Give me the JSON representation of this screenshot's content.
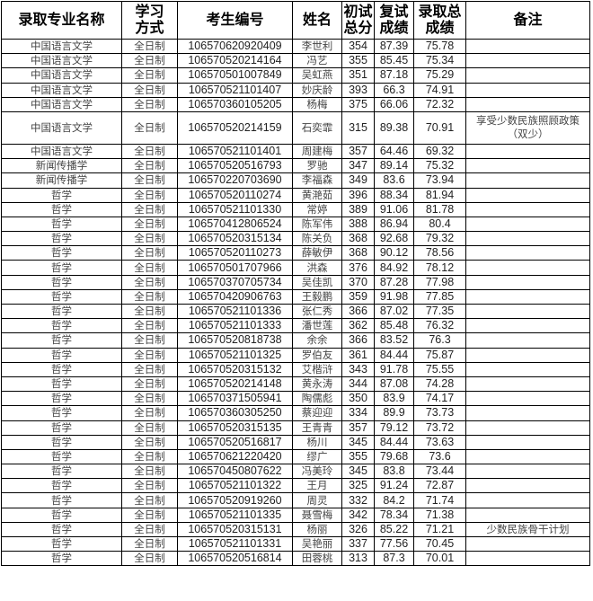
{
  "headers": [
    "录取专业名称",
    "学习方式",
    "考生编号",
    "姓名",
    "初试总分",
    "复试成绩",
    "录取总成绩",
    "备注"
  ],
  "rows": [
    [
      "中国语言文学",
      "全日制",
      "106570620920409",
      "李世利",
      "354",
      "87.39",
      "75.78",
      ""
    ],
    [
      "中国语言文学",
      "全日制",
      "106570520214164",
      "冯艺",
      "355",
      "85.45",
      "75.34",
      ""
    ],
    [
      "中国语言文学",
      "全日制",
      "106570501007849",
      "吴虹燕",
      "351",
      "87.18",
      "75.29",
      ""
    ],
    [
      "中国语言文学",
      "全日制",
      "106570521101407",
      "妙庆龄",
      "393",
      "66.3",
      "74.91",
      ""
    ],
    [
      "中国语言文学",
      "全日制",
      "106570360105205",
      "杨梅",
      "375",
      "66.06",
      "72.32",
      ""
    ],
    [
      "中国语言文学",
      "全日制",
      "106570520214159",
      "石奕霏",
      "315",
      "89.38",
      "70.91",
      "享受少数民族照顾政策（双少）"
    ],
    [
      "中国语言文学",
      "全日制",
      "106570521101401",
      "周建梅",
      "357",
      "64.46",
      "69.32",
      ""
    ],
    [
      "新闻传播学",
      "全日制",
      "106570520516793",
      "罗驰",
      "347",
      "89.14",
      "75.32",
      ""
    ],
    [
      "新闻传播学",
      "全日制",
      "106570220703690",
      "李福森",
      "349",
      "83.6",
      "73.94",
      ""
    ],
    [
      "哲学",
      "全日制",
      "106570520110274",
      "黄滟茹",
      "396",
      "88.34",
      "81.94",
      ""
    ],
    [
      "哲学",
      "全日制",
      "106570521101330",
      "常婷",
      "389",
      "91.06",
      "81.78",
      ""
    ],
    [
      "哲学",
      "全日制",
      "106570412806524",
      "陈军伟",
      "388",
      "86.94",
      "80.4",
      ""
    ],
    [
      "哲学",
      "全日制",
      "106570520315134",
      "陈关负",
      "368",
      "92.68",
      "79.32",
      ""
    ],
    [
      "哲学",
      "全日制",
      "106570520110273",
      "薛敏伊",
      "368",
      "90.12",
      "78.56",
      ""
    ],
    [
      "哲学",
      "全日制",
      "106570501707966",
      "洪森",
      "376",
      "84.92",
      "78.12",
      ""
    ],
    [
      "哲学",
      "全日制",
      "106570370705734",
      "吴佳凯",
      "370",
      "87.28",
      "77.98",
      ""
    ],
    [
      "哲学",
      "全日制",
      "106570420906763",
      "王毅鹏",
      "359",
      "91.98",
      "77.85",
      ""
    ],
    [
      "哲学",
      "全日制",
      "106570521101336",
      "张仁秀",
      "366",
      "87.02",
      "77.35",
      ""
    ],
    [
      "哲学",
      "全日制",
      "106570521101333",
      "潘世莲",
      "362",
      "85.48",
      "76.32",
      ""
    ],
    [
      "哲学",
      "全日制",
      "106570520818738",
      "余余",
      "366",
      "83.52",
      "76.3",
      ""
    ],
    [
      "哲学",
      "全日制",
      "106570521101325",
      "罗伯友",
      "361",
      "84.44",
      "75.87",
      ""
    ],
    [
      "哲学",
      "全日制",
      "106570520315132",
      "艾楷浒",
      "343",
      "91.78",
      "75.55",
      ""
    ],
    [
      "哲学",
      "全日制",
      "106570520214148",
      "黄永涛",
      "344",
      "87.08",
      "74.28",
      ""
    ],
    [
      "哲学",
      "全日制",
      "106570371505941",
      "陶儒彪",
      "350",
      "83.9",
      "74.17",
      ""
    ],
    [
      "哲学",
      "全日制",
      "106570360305250",
      "蔡迎迎",
      "334",
      "89.9",
      "73.73",
      ""
    ],
    [
      "哲学",
      "全日制",
      "106570520315135",
      "王青青",
      "357",
      "79.12",
      "73.72",
      ""
    ],
    [
      "哲学",
      "全日制",
      "106570520516817",
      "杨川",
      "345",
      "84.44",
      "73.63",
      ""
    ],
    [
      "哲学",
      "全日制",
      "106570621220420",
      "缪广",
      "355",
      "79.68",
      "73.6",
      ""
    ],
    [
      "哲学",
      "全日制",
      "106570450807622",
      "冯美玲",
      "345",
      "83.8",
      "73.44",
      ""
    ],
    [
      "哲学",
      "全日制",
      "106570521101322",
      "王月",
      "325",
      "91.24",
      "72.87",
      ""
    ],
    [
      "哲学",
      "全日制",
      "106570520919260",
      "周灵",
      "332",
      "84.2",
      "71.74",
      ""
    ],
    [
      "哲学",
      "全日制",
      "106570521101335",
      "聂雪梅",
      "342",
      "78.34",
      "71.38",
      ""
    ],
    [
      "哲学",
      "全日制",
      "106570520315131",
      "杨丽",
      "326",
      "85.22",
      "71.21",
      "少数民族骨干计划"
    ],
    [
      "哲学",
      "全日制",
      "106570521101331",
      "吴艳丽",
      "337",
      "77.56",
      "70.45",
      ""
    ],
    [
      "哲学",
      "全日制",
      "106570520516814",
      "田蓉桃",
      "313",
      "87.3",
      "70.01",
      ""
    ]
  ]
}
